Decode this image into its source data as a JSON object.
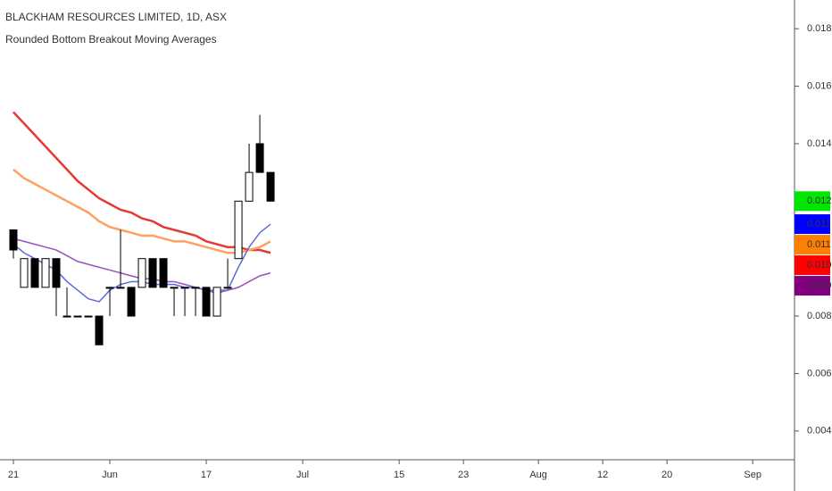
{
  "chart_data": {
    "type": "candlestick",
    "title": "BLACKHAM RESOURCES LIMITED, 1D, ASX",
    "subtitle": "Rounded Bottom Breakout Moving Averages",
    "x": [
      0,
      1,
      2,
      3,
      4,
      5,
      6,
      7,
      8,
      9,
      10,
      11,
      12,
      13,
      14,
      15,
      16,
      17,
      18,
      19,
      20,
      21,
      22,
      23,
      24
    ],
    "open": [
      0.011,
      0.009,
      0.01,
      0.009,
      0.01,
      0.008,
      0.008,
      0.008,
      0.008,
      0.009,
      0.009,
      0.009,
      0.009,
      0.01,
      0.01,
      0.009,
      0.009,
      0.009,
      0.009,
      0.008,
      0.009,
      0.01,
      0.012,
      0.014,
      0.013
    ],
    "high": [
      0.011,
      0.01,
      0.01,
      0.01,
      0.01,
      0.009,
      0.008,
      0.008,
      0.008,
      0.009,
      0.011,
      0.009,
      0.01,
      0.01,
      0.01,
      0.009,
      0.009,
      0.009,
      0.009,
      0.009,
      0.01,
      0.012,
      0.014,
      0.015,
      0.013
    ],
    "low": [
      0.01,
      0.009,
      0.009,
      0.009,
      0.008,
      0.008,
      0.008,
      0.008,
      0.007,
      0.008,
      0.009,
      0.008,
      0.009,
      0.009,
      0.009,
      0.008,
      0.008,
      0.008,
      0.008,
      0.008,
      0.009,
      0.01,
      0.012,
      0.013,
      0.012
    ],
    "close": [
      0.0103,
      0.01,
      0.009,
      0.01,
      0.009,
      0.008,
      0.008,
      0.008,
      0.007,
      0.009,
      0.009,
      0.008,
      0.01,
      0.009,
      0.009,
      0.009,
      0.009,
      0.009,
      0.008,
      0.009,
      0.009,
      0.012,
      0.013,
      0.013,
      0.012
    ],
    "close_label": "0.012",
    "close_label_color": "#00e600",
    "up_color": "#ffffff",
    "down_color": "#000000",
    "series": [
      {
        "name": "MA red",
        "color": "#e53935",
        "value_label": "0.010",
        "values": [
          0.0151,
          0.0147,
          0.0143,
          0.0139,
          0.0135,
          0.0131,
          0.0127,
          0.0124,
          0.0121,
          0.0119,
          0.0117,
          0.0116,
          0.0114,
          0.0113,
          0.0111,
          0.011,
          0.0109,
          0.0108,
          0.0106,
          0.0105,
          0.0104,
          0.0104,
          0.0103,
          0.0103,
          0.0102
        ]
      },
      {
        "name": "MA orange",
        "color": "#ffa060",
        "value_label": "0.011",
        "values": [
          0.0131,
          0.0128,
          0.0126,
          0.0124,
          0.0122,
          0.012,
          0.0118,
          0.0116,
          0.0113,
          0.0111,
          0.011,
          0.0109,
          0.0108,
          0.0108,
          0.0107,
          0.0106,
          0.0106,
          0.0105,
          0.0104,
          0.0103,
          0.0102,
          0.0102,
          0.0103,
          0.0104,
          0.0106
        ]
      },
      {
        "name": "MA purple",
        "color": "#9c4fbf",
        "value_label": "0.009",
        "values": [
          0.0107,
          0.0106,
          0.0105,
          0.0104,
          0.0103,
          0.0101,
          0.0099,
          0.0098,
          0.0097,
          0.0096,
          0.0095,
          0.0094,
          0.0093,
          0.0093,
          0.0092,
          0.0092,
          0.0091,
          0.009,
          0.0089,
          0.0089,
          0.0089,
          0.009,
          0.0092,
          0.0094,
          0.0095
        ]
      },
      {
        "name": "MA blue",
        "color": "#5c6bd6",
        "value_label": "0.011",
        "values": [
          0.0105,
          0.0102,
          0.01,
          0.0098,
          0.0096,
          0.0092,
          0.0089,
          0.0086,
          0.0085,
          0.0089,
          0.0091,
          0.0092,
          0.0092,
          0.0091,
          0.0091,
          0.0091,
          0.009,
          0.009,
          0.0089,
          0.0088,
          0.0089,
          0.0097,
          0.0104,
          0.0109,
          0.0112
        ]
      }
    ],
    "label_colors": [
      "#ff0000",
      "#ff8000",
      "#800080",
      "#0000ff"
    ],
    "xlim": [
      -1.25,
      72.9
    ],
    "xticks": [
      {
        "value": 0,
        "label": "21"
      },
      {
        "value": 9,
        "label": "Jun"
      },
      {
        "value": 18,
        "label": "17"
      },
      {
        "value": 27,
        "label": "Jul"
      },
      {
        "value": 36,
        "label": "15"
      },
      {
        "value": 42,
        "label": "23"
      },
      {
        "value": 49,
        "label": "Aug"
      },
      {
        "value": 55,
        "label": "12"
      },
      {
        "value": 61,
        "label": "20"
      },
      {
        "value": 69,
        "label": "Sep"
      }
    ],
    "ylim": [
      0.003,
      0.019
    ],
    "yticks": [
      0.004,
      0.006,
      0.008,
      0.014,
      0.016,
      0.018
    ]
  }
}
